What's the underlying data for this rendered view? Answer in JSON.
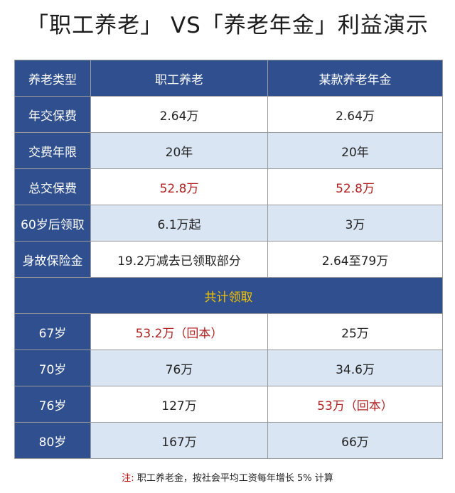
{
  "title": "「职工养老」 VS「养老年金」利益演示",
  "header": {
    "label": "养老类型",
    "col1": "职工养老",
    "col2": "某款养老年金"
  },
  "rows_top": [
    {
      "label": "年交保费",
      "col1": "2.64万",
      "col2": "2.64万",
      "highlight": false
    },
    {
      "label": "交费年限",
      "col1": "20年",
      "col2": "20年",
      "highlight": false
    },
    {
      "label": "总交保费",
      "col1": "52.8万",
      "col2": "52.8万",
      "highlight": true
    },
    {
      "label": "60岁后领取",
      "col1": "6.1万起",
      "col2": "3万",
      "highlight": false
    },
    {
      "label": "身故保险金",
      "col1": "19.2万减去已领取部分",
      "col2": "2.64至79万",
      "highlight": false
    }
  ],
  "section_title": "共计领取",
  "rows_bottom": [
    {
      "label": "67岁",
      "col1": "53.2万（回本）",
      "col2": "25万"
    },
    {
      "label": "70岁",
      "col1": "76万",
      "col2": "34.6万"
    },
    {
      "label": "76岁",
      "col1": "127万",
      "col2": "53万（回本）"
    },
    {
      "label": "80岁",
      "col1": "167万",
      "col2": "66万"
    }
  ],
  "note": {
    "prefix": "注:",
    "text": "职工养老金，按社会平均工资每年增长 5% 计算"
  },
  "colors": {
    "header_blue": "#2f4f8e",
    "light_blue": "#d9e5f3",
    "red": "#b02020",
    "gold": "#f2c200"
  }
}
